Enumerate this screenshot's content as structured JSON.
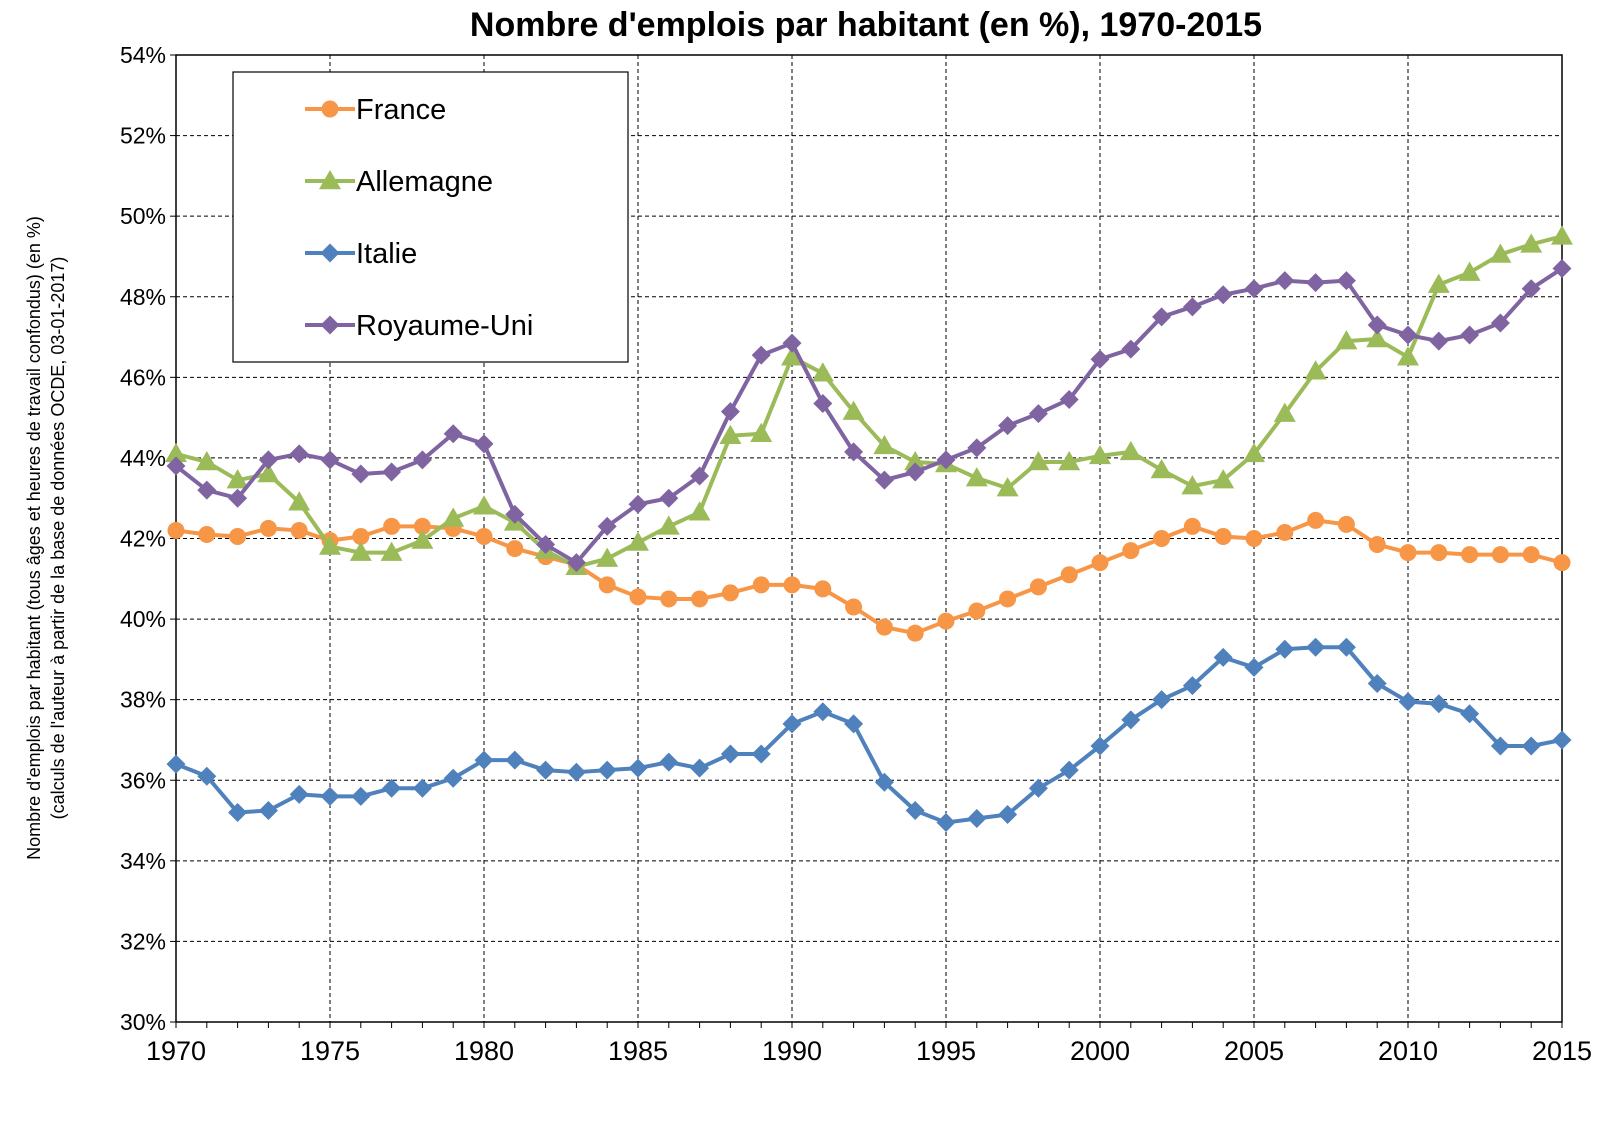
{
  "chart_data": {
    "type": "line",
    "title": "Nombre d'emplois par habitant (en %), 1970-2015",
    "ylabel_lines": [
      "Nombre d'emplois  par habitant (tous âges et heures de travail confondus) (en %)",
      "(calculs de l'auteur à partir de la base de données OCDE, 03-01-2017)"
    ],
    "xlabel": "",
    "xlim": [
      1970,
      2015
    ],
    "ylim": [
      30,
      54
    ],
    "x_ticks": [
      1970,
      1975,
      1980,
      1985,
      1990,
      1995,
      2000,
      2005,
      2010,
      2015
    ],
    "y_ticks": [
      30,
      32,
      34,
      36,
      38,
      40,
      42,
      44,
      46,
      48,
      50,
      52,
      54
    ],
    "y_tick_suffix": "%",
    "grid": true,
    "grid_style": "dashed",
    "legend_position": "top-left",
    "x": [
      1970,
      1971,
      1972,
      1973,
      1974,
      1975,
      1976,
      1977,
      1978,
      1979,
      1980,
      1981,
      1982,
      1983,
      1984,
      1985,
      1986,
      1987,
      1988,
      1989,
      1990,
      1991,
      1992,
      1993,
      1994,
      1995,
      1996,
      1997,
      1998,
      1999,
      2000,
      2001,
      2002,
      2003,
      2004,
      2005,
      2006,
      2007,
      2008,
      2009,
      2010,
      2011,
      2012,
      2013,
      2014,
      2015
    ],
    "series": [
      {
        "name": "France",
        "color": "#F79646",
        "marker": "circle",
        "values": [
          42.2,
          42.1,
          42.05,
          42.25,
          42.2,
          41.95,
          42.05,
          42.3,
          42.3,
          42.25,
          42.05,
          41.75,
          41.55,
          41.35,
          40.85,
          40.55,
          40.5,
          40.5,
          40.65,
          40.85,
          40.85,
          40.75,
          40.3,
          39.8,
          39.65,
          39.95,
          40.2,
          40.5,
          40.8,
          41.1,
          41.4,
          41.7,
          42.0,
          42.3,
          42.05,
          42.0,
          42.15,
          42.45,
          42.35,
          41.85,
          41.65,
          41.65,
          41.6,
          41.6,
          41.6,
          41.4
        ]
      },
      {
        "name": "Allemagne",
        "color": "#9BBB59",
        "marker": "triangle",
        "values": [
          44.1,
          43.9,
          43.45,
          43.6,
          42.9,
          41.8,
          41.65,
          41.65,
          41.95,
          42.5,
          42.8,
          42.4,
          41.7,
          41.3,
          41.5,
          41.9,
          42.3,
          42.65,
          44.55,
          44.6,
          46.5,
          46.1,
          45.15,
          44.3,
          43.9,
          43.85,
          43.5,
          43.25,
          43.9,
          43.9,
          44.05,
          44.15,
          43.7,
          43.3,
          43.45,
          44.1,
          45.1,
          46.15,
          46.9,
          46.95,
          46.5,
          48.3,
          48.6,
          49.05,
          49.3,
          49.5
        ]
      },
      {
        "name": "Italie",
        "color": "#4F81BD",
        "marker": "diamond",
        "values": [
          36.4,
          36.1,
          35.2,
          35.25,
          35.65,
          35.6,
          35.6,
          35.8,
          35.8,
          36.05,
          36.5,
          36.5,
          36.25,
          36.2,
          36.25,
          36.3,
          36.45,
          36.3,
          36.65,
          36.65,
          37.4,
          37.7,
          37.4,
          35.95,
          35.25,
          34.95,
          35.05,
          35.15,
          35.8,
          36.25,
          36.85,
          37.5,
          38.0,
          38.35,
          39.05,
          38.8,
          39.25,
          39.3,
          39.3,
          38.4,
          37.95,
          37.9,
          37.65,
          36.85,
          36.85,
          37.0
        ]
      },
      {
        "name": "Royaume-Uni",
        "color": "#8064A2",
        "marker": "diamond",
        "values": [
          43.8,
          43.2,
          43.0,
          43.95,
          44.1,
          43.95,
          43.6,
          43.65,
          43.95,
          44.6,
          44.35,
          42.6,
          41.85,
          41.4,
          42.3,
          42.85,
          43.0,
          43.55,
          45.15,
          46.55,
          46.85,
          45.35,
          44.15,
          43.45,
          43.65,
          43.95,
          44.25,
          44.8,
          45.1,
          45.45,
          46.45,
          46.7,
          47.5,
          47.75,
          48.05,
          48.2,
          48.4,
          48.35,
          48.4,
          47.3,
          47.05,
          46.9,
          47.05,
          47.35,
          48.2,
          48.7
        ]
      }
    ]
  }
}
